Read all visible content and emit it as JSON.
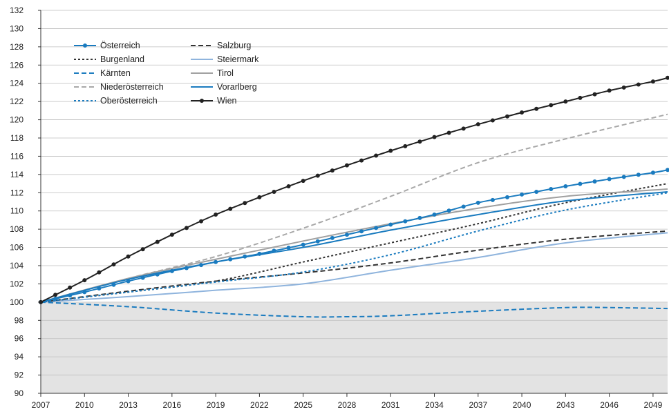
{
  "chart_data": {
    "type": "line",
    "title": "",
    "xlabel": "",
    "ylabel": "",
    "xlim": [
      2007,
      2050
    ],
    "ylim": [
      90,
      132
    ],
    "x_ticks": [
      2007,
      2010,
      2013,
      2016,
      2019,
      2022,
      2025,
      2028,
      2031,
      2034,
      2037,
      2040,
      2043,
      2046,
      2049
    ],
    "y_ticks": [
      90,
      92,
      94,
      96,
      98,
      100,
      102,
      104,
      106,
      108,
      110,
      112,
      114,
      116,
      118,
      120,
      122,
      124,
      126,
      128,
      130,
      132
    ],
    "shaded_below": 100,
    "grid": "horizontal",
    "legend_position": "top-left",
    "series": [
      {
        "name": "Österreich",
        "color": "#1a7bbf",
        "style": "solid-dots",
        "points": [
          [
            2007,
            100
          ],
          [
            2010,
            101.1
          ],
          [
            2013,
            102.3
          ],
          [
            2016,
            103.4
          ],
          [
            2019,
            104.4
          ],
          [
            2022,
            105.3
          ],
          [
            2025,
            106.3
          ],
          [
            2028,
            107.4
          ],
          [
            2031,
            108.5
          ],
          [
            2034,
            109.6
          ],
          [
            2037,
            110.9
          ],
          [
            2040,
            111.8
          ],
          [
            2043,
            112.7
          ],
          [
            2046,
            113.5
          ],
          [
            2049,
            114.2
          ],
          [
            2050,
            114.5
          ]
        ]
      },
      {
        "name": "Burgenland",
        "color": "#333333",
        "style": "dotted",
        "points": [
          [
            2007,
            100
          ],
          [
            2013,
            101.1
          ],
          [
            2019,
            102.3
          ],
          [
            2025,
            104.4
          ],
          [
            2031,
            106.5
          ],
          [
            2037,
            108.6
          ],
          [
            2043,
            110.9
          ],
          [
            2050,
            113.0
          ]
        ]
      },
      {
        "name": "Kärnten",
        "color": "#1a7bbf",
        "style": "dashed",
        "points": [
          [
            2007,
            100
          ],
          [
            2013,
            99.5
          ],
          [
            2019,
            98.8
          ],
          [
            2025,
            98.4
          ],
          [
            2028,
            98.4
          ],
          [
            2031,
            98.5
          ],
          [
            2037,
            99.0
          ],
          [
            2043,
            99.4
          ],
          [
            2046,
            99.4
          ],
          [
            2050,
            99.3
          ]
        ]
      },
      {
        "name": "Niederösterreich",
        "color": "#a8a8a8",
        "style": "dashed",
        "points": [
          [
            2007,
            100
          ],
          [
            2013,
            102.6
          ],
          [
            2019,
            105.0
          ],
          [
            2025,
            108.1
          ],
          [
            2031,
            111.6
          ],
          [
            2037,
            115.3
          ],
          [
            2043,
            117.9
          ],
          [
            2050,
            120.6
          ]
        ]
      },
      {
        "name": "Oberösterreich",
        "color": "#1a7bbf",
        "style": "dotted",
        "points": [
          [
            2007,
            100
          ],
          [
            2013,
            101.1
          ],
          [
            2019,
            102.2
          ],
          [
            2025,
            103.3
          ],
          [
            2031,
            105.2
          ],
          [
            2037,
            107.8
          ],
          [
            2043,
            110.1
          ],
          [
            2050,
            112.0
          ]
        ]
      },
      {
        "name": "Salzburg",
        "color": "#333333",
        "style": "dashed",
        "points": [
          [
            2007,
            100
          ],
          [
            2013,
            101.2
          ],
          [
            2019,
            102.3
          ],
          [
            2025,
            103.2
          ],
          [
            2031,
            104.3
          ],
          [
            2037,
            105.7
          ],
          [
            2043,
            106.9
          ],
          [
            2050,
            107.8
          ]
        ]
      },
      {
        "name": "Steiermark",
        "color": "#8fb4dd",
        "style": "solid",
        "points": [
          [
            2007,
            100
          ],
          [
            2013,
            100.6
          ],
          [
            2019,
            101.3
          ],
          [
            2025,
            102.0
          ],
          [
            2031,
            103.5
          ],
          [
            2037,
            104.9
          ],
          [
            2043,
            106.5
          ],
          [
            2050,
            107.6
          ]
        ]
      },
      {
        "name": "Tirol",
        "color": "#a0a0a0",
        "style": "solid",
        "points": [
          [
            2007,
            100
          ],
          [
            2013,
            102.6
          ],
          [
            2019,
            104.7
          ],
          [
            2025,
            106.7
          ],
          [
            2031,
            108.6
          ],
          [
            2037,
            110.3
          ],
          [
            2043,
            111.6
          ],
          [
            2050,
            112.4
          ]
        ]
      },
      {
        "name": "Vorarlberg",
        "color": "#1a7bbf",
        "style": "solid",
        "points": [
          [
            2007,
            100
          ],
          [
            2013,
            102.5
          ],
          [
            2019,
            104.4
          ],
          [
            2025,
            106.0
          ],
          [
            2031,
            107.9
          ],
          [
            2037,
            109.6
          ],
          [
            2043,
            111.1
          ],
          [
            2050,
            112.1
          ]
        ]
      },
      {
        "name": "Wien",
        "color": "#222222",
        "style": "solid-dots",
        "points": [
          [
            2007,
            100
          ],
          [
            2010,
            102.4
          ],
          [
            2013,
            105.0
          ],
          [
            2016,
            107.4
          ],
          [
            2019,
            109.6
          ],
          [
            2022,
            111.5
          ],
          [
            2025,
            113.3
          ],
          [
            2028,
            115.0
          ],
          [
            2031,
            116.6
          ],
          [
            2034,
            118.1
          ],
          [
            2037,
            119.5
          ],
          [
            2040,
            120.8
          ],
          [
            2043,
            122.0
          ],
          [
            2046,
            123.2
          ],
          [
            2049,
            124.2
          ],
          [
            2050,
            124.6
          ]
        ]
      }
    ]
  }
}
